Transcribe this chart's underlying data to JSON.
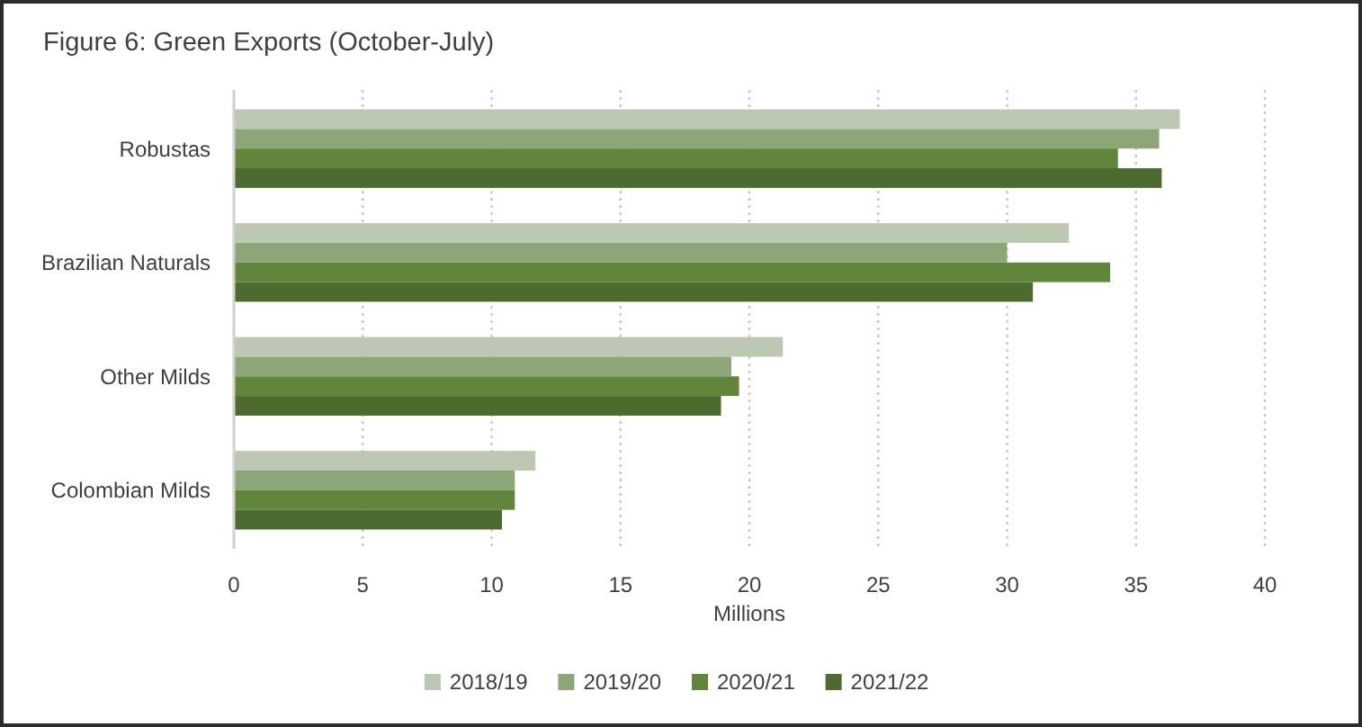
{
  "chart_data": {
    "type": "bar",
    "orientation": "horizontal",
    "title": "Figure 6: Green Exports (October-July)",
    "xlabel": "Millions",
    "categories": [
      "Robustas",
      "Brazilian Naturals",
      "Other Milds",
      "Colombian Milds"
    ],
    "series": [
      {
        "name": "2018/19",
        "color": "#bdc8b3",
        "values": [
          36.7,
          32.4,
          21.3,
          11.7
        ]
      },
      {
        "name": "2019/20",
        "color": "#8ca677",
        "values": [
          35.9,
          30.0,
          19.3,
          10.9
        ]
      },
      {
        "name": "2020/21",
        "color": "#62853c",
        "values": [
          34.3,
          34.0,
          19.6,
          10.9
        ]
      },
      {
        "name": "2021/22",
        "color": "#4e6b2f",
        "values": [
          36.0,
          31.0,
          18.9,
          10.4
        ]
      }
    ],
    "xlim": [
      0,
      40
    ],
    "xticks": [
      0,
      5,
      10,
      15,
      20,
      25,
      30,
      35,
      40
    ],
    "grid": "x",
    "legend": "bottom"
  }
}
